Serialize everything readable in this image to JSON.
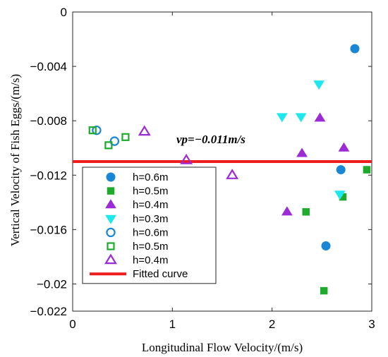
{
  "chart_data": {
    "type": "scatter",
    "xlabel": "Longitudinal Flow Velocity/(m/s)",
    "ylabel": "Vertical Velocity of Fish Eggs/(m/s)",
    "xlim": [
      0,
      3
    ],
    "ylim": [
      -0.022,
      0
    ],
    "x_ticks": [
      0,
      1,
      2,
      3
    ],
    "x_tick_labels": [
      "0",
      "1",
      "2",
      "3"
    ],
    "y_ticks": [
      0,
      -0.004,
      -0.008,
      -0.012,
      -0.016,
      -0.02,
      -0.022
    ],
    "y_tick_labels": [
      "0",
      "−0.004",
      "−0.008",
      "−0.012",
      "−0.016",
      "−0.02",
      "−0.022"
    ],
    "grid": false,
    "legend_position": "bottom-left",
    "annotation": "vp=−0.011m/s",
    "series": [
      {
        "name": "h=0.6m",
        "marker": "circle",
        "filled": true,
        "color": "#1a86d6",
        "points": [
          [
            2.83,
            -0.0027
          ],
          [
            2.69,
            -0.0116
          ],
          [
            2.54,
            -0.0172
          ]
        ]
      },
      {
        "name": "h=0.5m",
        "marker": "square",
        "filled": true,
        "color": "#1faa2c",
        "points": [
          [
            2.95,
            -0.0116
          ],
          [
            2.71,
            -0.0136
          ],
          [
            2.34,
            -0.0147
          ],
          [
            2.52,
            -0.0205
          ]
        ]
      },
      {
        "name": "h=0.4m",
        "marker": "triangle-up",
        "filled": true,
        "color": "#9c2bd6",
        "points": [
          [
            2.48,
            -0.0078
          ],
          [
            2.3,
            -0.0104
          ],
          [
            2.72,
            -0.01
          ],
          [
            2.15,
            -0.0147
          ]
        ]
      },
      {
        "name": "h=0.3m",
        "marker": "triangle-down",
        "filled": true,
        "color": "#1ee8ee",
        "points": [
          [
            2.47,
            -0.0053
          ],
          [
            2.1,
            -0.0077
          ],
          [
            2.29,
            -0.0077
          ],
          [
            2.68,
            -0.0134
          ]
        ]
      },
      {
        "name": "h=0.6m",
        "marker": "circle",
        "filled": false,
        "color": "#1a86d6",
        "points": [
          [
            0.24,
            -0.0087
          ],
          [
            0.42,
            -0.0095
          ]
        ]
      },
      {
        "name": "h=0.5m",
        "marker": "square",
        "filled": false,
        "color": "#1faa2c",
        "points": [
          [
            0.2,
            -0.0087
          ],
          [
            0.36,
            -0.0098
          ],
          [
            0.53,
            -0.0092
          ]
        ]
      },
      {
        "name": "h=0.4m",
        "marker": "triangle-up",
        "filled": false,
        "color": "#9c2bd6",
        "points": [
          [
            0.72,
            -0.0088
          ],
          [
            1.14,
            -0.0109
          ],
          [
            1.6,
            -0.012
          ]
        ]
      }
    ],
    "fitted_curve": {
      "name": "Fitted curve",
      "color": "#ee1c1c",
      "y": -0.011
    }
  }
}
